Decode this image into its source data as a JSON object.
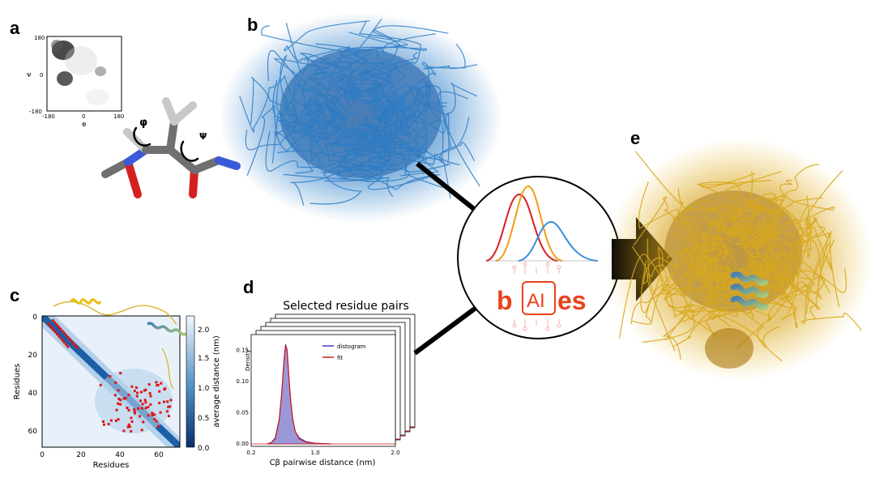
{
  "panels": {
    "a": {
      "label": "a",
      "ramachandran": {
        "x_ticks": [
          "-180",
          "0",
          "180"
        ],
        "y_ticks": [
          "180",
          "0",
          "-180"
        ],
        "xlabel": "Φ",
        "ylabel": "Ψ"
      },
      "angle_labels": {
        "phi": "φ",
        "psi": "Ψ"
      }
    },
    "b": {
      "label": "b"
    },
    "c": {
      "label": "c",
      "x_ticks": [
        "0",
        "20",
        "40",
        "60"
      ],
      "y_ticks": [
        "0",
        "20",
        "40",
        "60"
      ],
      "xlabel": "Residues",
      "ylabel": "Residues",
      "colorbar_label": "average distance (nm)",
      "colorbar_ticks": [
        "2.0",
        "1.5",
        "1.0",
        "0.5",
        "0.0"
      ]
    },
    "d": {
      "label": "d"
    },
    "e": {
      "label": "e"
    }
  },
  "logo": {
    "part1": "b",
    "part2": "AI",
    "part3": "es"
  },
  "chart_data": {
    "type": "area",
    "title": "Selected residue pairs",
    "xlabel": "Cβ pairwise distance (nm)",
    "ylabel": "Density",
    "x_ticks": [
      "0.2",
      "1.0",
      "2.0"
    ],
    "y_ticks": [
      "0.15",
      "0.10",
      "0.05",
      "0.00"
    ],
    "xlim": [
      0.2,
      2.0
    ],
    "ylim": [
      0,
      0.17
    ],
    "legend": [
      "distogram",
      "fit"
    ],
    "legend_position": "top-right",
    "colors": {
      "distogram": "#3f3fc0",
      "fit": "#d11a1a"
    },
    "x": [
      0.4,
      0.45,
      0.5,
      0.55,
      0.58,
      0.61,
      0.63,
      0.65,
      0.67,
      0.69,
      0.72,
      0.75,
      0.8,
      0.88,
      1.0,
      1.2
    ],
    "distogram": [
      0.0,
      0.002,
      0.01,
      0.04,
      0.08,
      0.135,
      0.16,
      0.15,
      0.11,
      0.075,
      0.04,
      0.02,
      0.01,
      0.004,
      0.001,
      0.0
    ],
    "fit": [
      0.0,
      0.002,
      0.008,
      0.038,
      0.08,
      0.132,
      0.158,
      0.148,
      0.108,
      0.072,
      0.038,
      0.02,
      0.008,
      0.003,
      0.001,
      0.0
    ]
  }
}
